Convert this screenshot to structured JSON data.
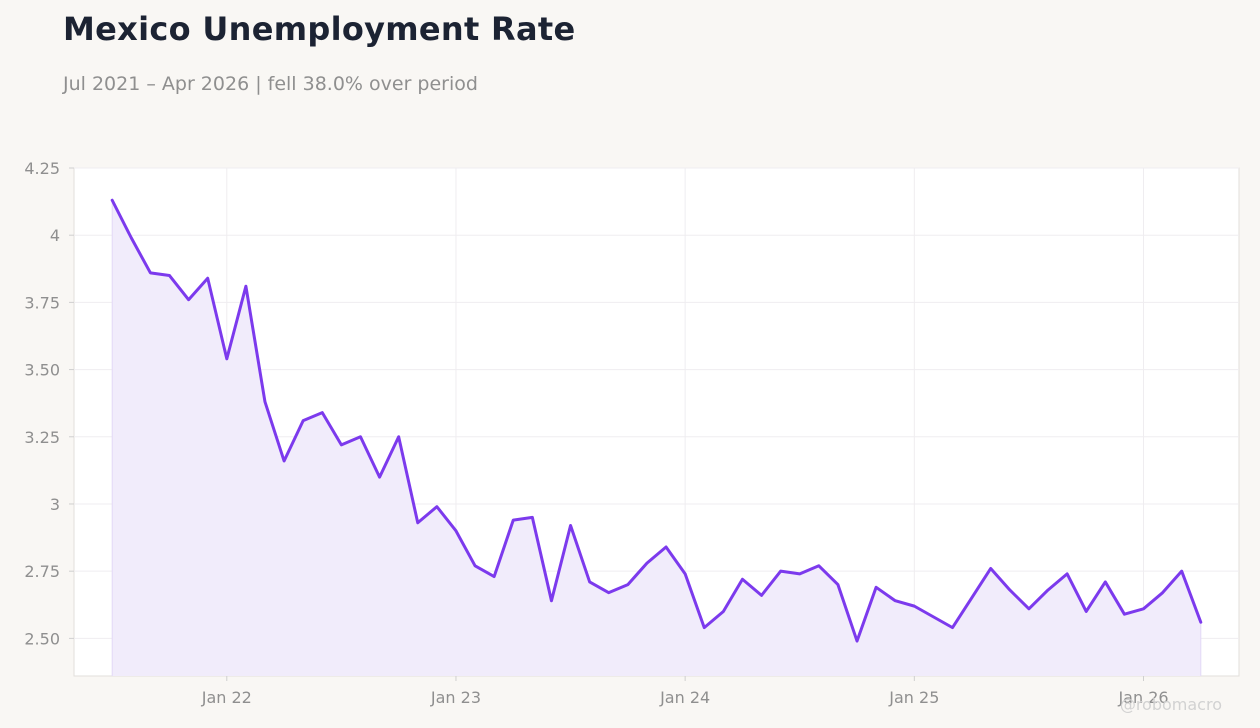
{
  "title": "Mexico Unemployment Rate",
  "subtitle": "Jul 2021 – Apr 2026 | fell 38.0% over period",
  "watermark": "@robomacro",
  "colors": {
    "line": "#7c3aed",
    "area": "#f1ecfb",
    "plot_bg": "#ffffff",
    "page_bg": "#f9f7f4"
  },
  "chart_data": {
    "type": "area",
    "xlabel": "",
    "ylabel": "",
    "ylim": [
      2.36,
      4.25
    ],
    "xlim": [
      "2021-05",
      "2026-06"
    ],
    "grid": true,
    "yticks": [
      {
        "value": 2.5,
        "label": "2.50"
      },
      {
        "value": 2.75,
        "label": "2.75"
      },
      {
        "value": 3.0,
        "label": "3"
      },
      {
        "value": 3.25,
        "label": "3.25"
      },
      {
        "value": 3.5,
        "label": "3.50"
      },
      {
        "value": 3.75,
        "label": "3.75"
      },
      {
        "value": 4.0,
        "label": "4"
      },
      {
        "value": 4.25,
        "label": "4.25"
      }
    ],
    "xticks": [
      {
        "value": "2022-01",
        "label": "Jan 22"
      },
      {
        "value": "2023-01",
        "label": "Jan 23"
      },
      {
        "value": "2024-01",
        "label": "Jan 24"
      },
      {
        "value": "2025-01",
        "label": "Jan 25"
      },
      {
        "value": "2026-01",
        "label": "Jan 26"
      }
    ],
    "series": [
      {
        "x": [
          "2021-07",
          "2021-08",
          "2021-09",
          "2021-10",
          "2021-11",
          "2021-12",
          "2022-01",
          "2022-02",
          "2022-03",
          "2022-04",
          "2022-05",
          "2022-06",
          "2022-07",
          "2022-08",
          "2022-09",
          "2022-10",
          "2022-11",
          "2022-12",
          "2023-01",
          "2023-02",
          "2023-03",
          "2023-04",
          "2023-05",
          "2023-06",
          "2023-07",
          "2023-08",
          "2023-09",
          "2023-10",
          "2023-11",
          "2023-12",
          "2024-01",
          "2024-02",
          "2024-03",
          "2024-04",
          "2024-05",
          "2024-06",
          "2024-07",
          "2024-08",
          "2024-09",
          "2024-10",
          "2024-11",
          "2024-12",
          "2025-01",
          "2025-02",
          "2025-03",
          "2025-04",
          "2025-05",
          "2025-06",
          "2025-07",
          "2025-08",
          "2025-09",
          "2025-10",
          "2025-11",
          "2025-12",
          "2026-01",
          "2026-02",
          "2026-03",
          "2026-04"
        ],
        "values": [
          4.13,
          3.99,
          3.86,
          3.85,
          3.76,
          3.84,
          3.54,
          3.81,
          3.38,
          3.16,
          3.31,
          3.34,
          3.22,
          3.25,
          3.1,
          3.25,
          2.93,
          2.99,
          2.9,
          2.77,
          2.73,
          2.94,
          2.95,
          2.64,
          2.92,
          2.71,
          2.67,
          2.7,
          2.78,
          2.84,
          2.74,
          2.54,
          2.6,
          2.72,
          2.66,
          2.75,
          2.74,
          2.77,
          2.7,
          2.49,
          2.69,
          2.64,
          2.62,
          2.58,
          2.54,
          2.65,
          2.76,
          2.68,
          2.61,
          2.68,
          2.74,
          2.6,
          2.71,
          2.59,
          2.61,
          2.67,
          2.75,
          2.56
        ]
      }
    ]
  }
}
